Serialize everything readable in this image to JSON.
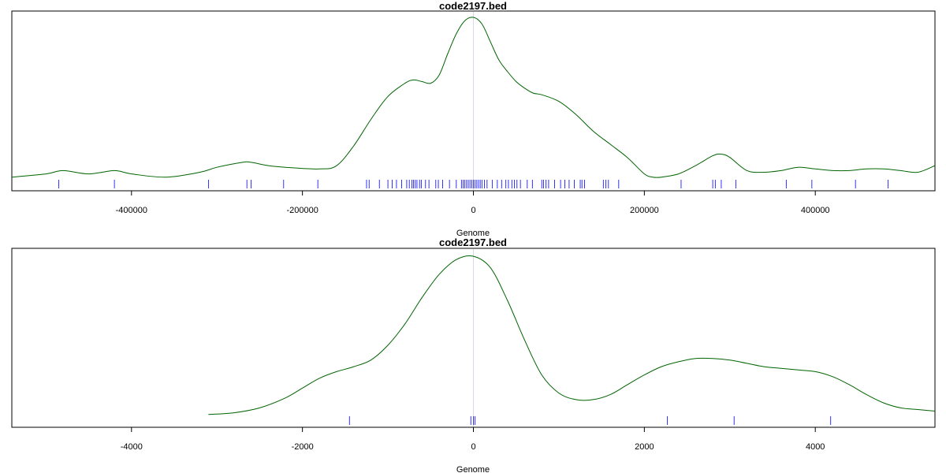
{
  "colors": {
    "density": "#006400",
    "rug": "#0000ff",
    "center_line": "#d8d8e8",
    "frame": "#000000"
  },
  "chart_data": [
    {
      "type": "line",
      "title": "code2197.bed",
      "xlabel": "Genome",
      "ylabel": "",
      "xlim": [
        -540000,
        540000
      ],
      "ylim": [
        0,
        1
      ],
      "xticks": [
        -400000,
        -200000,
        0,
        200000,
        400000
      ],
      "xtick_labels": [
        "-400000",
        "-200000",
        "0",
        "200000",
        "400000"
      ],
      "center": 0,
      "series": [
        {
          "x": [
            -540000,
            -500000,
            -480000,
            -450000,
            -420000,
            -400000,
            -360000,
            -320000,
            -300000,
            -270000,
            -260000,
            -240000,
            -220000,
            -180000,
            -160000,
            -140000,
            -120000,
            -100000,
            -80000,
            -70000,
            -60000,
            -50000,
            -40000,
            -30000,
            -20000,
            -10000,
            0,
            10000,
            20000,
            30000,
            40000,
            50000,
            60000,
            70000,
            80000,
            100000,
            120000,
            140000,
            160000,
            180000,
            200000,
            210000,
            220000,
            240000,
            260000,
            280000,
            290000,
            300000,
            320000,
            340000,
            360000,
            380000,
            400000,
            420000,
            440000,
            460000,
            480000,
            500000,
            520000,
            540000
          ],
          "y": [
            0.03,
            0.05,
            0.07,
            0.05,
            0.07,
            0.05,
            0.03,
            0.06,
            0.09,
            0.12,
            0.12,
            0.1,
            0.09,
            0.08,
            0.1,
            0.22,
            0.38,
            0.52,
            0.6,
            0.62,
            0.61,
            0.6,
            0.65,
            0.78,
            0.9,
            0.98,
            1.0,
            0.96,
            0.85,
            0.74,
            0.67,
            0.61,
            0.57,
            0.54,
            0.53,
            0.49,
            0.41,
            0.31,
            0.23,
            0.15,
            0.05,
            0.03,
            0.03,
            0.05,
            0.1,
            0.16,
            0.17,
            0.15,
            0.07,
            0.06,
            0.07,
            0.09,
            0.08,
            0.07,
            0.07,
            0.08,
            0.08,
            0.07,
            0.06,
            0.1
          ]
        }
      ],
      "rug": [
        -485000,
        -420000,
        -310000,
        -265000,
        -260000,
        -222000,
        -182000,
        -125000,
        -122000,
        -110000,
        -100000,
        -95000,
        -90000,
        -84000,
        -78000,
        -75000,
        -72000,
        -70000,
        -68000,
        -66000,
        -63000,
        -61000,
        -56000,
        -52000,
        -44000,
        -41000,
        -36000,
        -28000,
        -20000,
        -14000,
        -12000,
        -10000,
        -8000,
        -6000,
        -4000,
        -2000,
        0,
        2000,
        4000,
        6000,
        8000,
        10000,
        13000,
        16000,
        22000,
        28000,
        33000,
        38000,
        41000,
        45000,
        48000,
        51000,
        55000,
        63000,
        69000,
        80000,
        82000,
        85000,
        88000,
        95000,
        102000,
        107000,
        112000,
        118000,
        125000,
        127000,
        130000,
        152000,
        155000,
        158000,
        170000,
        243000,
        280000,
        283000,
        290000,
        307000,
        366000,
        396000,
        447000,
        485000
      ]
    },
    {
      "type": "line",
      "title": "code2197.bed",
      "xlabel": "Genome",
      "ylabel": "",
      "xlim": [
        -5400,
        5400
      ],
      "ylim": [
        0,
        1
      ],
      "xticks": [
        -4000,
        -2000,
        0,
        2000,
        4000
      ],
      "xtick_labels": [
        "-4000",
        "-2000",
        "0",
        "2000",
        "4000"
      ],
      "center": 0,
      "series": [
        {
          "x": [
            -3100,
            -2800,
            -2500,
            -2200,
            -2000,
            -1800,
            -1600,
            -1400,
            -1200,
            -1000,
            -800,
            -600,
            -400,
            -200,
            0,
            200,
            400,
            600,
            800,
            1000,
            1200,
            1400,
            1600,
            1800,
            2000,
            2200,
            2400,
            2600,
            2800,
            3000,
            3200,
            3400,
            3600,
            3800,
            4000,
            4200,
            4400,
            4600,
            4800,
            5000,
            5200,
            5400
          ],
          "y": [
            0.03,
            0.04,
            0.07,
            0.13,
            0.19,
            0.25,
            0.29,
            0.32,
            0.36,
            0.45,
            0.58,
            0.74,
            0.88,
            0.97,
            0.99,
            0.92,
            0.72,
            0.48,
            0.27,
            0.16,
            0.12,
            0.12,
            0.15,
            0.21,
            0.27,
            0.32,
            0.35,
            0.37,
            0.37,
            0.36,
            0.34,
            0.32,
            0.31,
            0.3,
            0.29,
            0.26,
            0.21,
            0.15,
            0.1,
            0.07,
            0.06,
            0.05
          ]
        }
      ],
      "rug": [
        -1450,
        -30,
        0,
        20,
        2270,
        3050,
        4180
      ]
    }
  ]
}
